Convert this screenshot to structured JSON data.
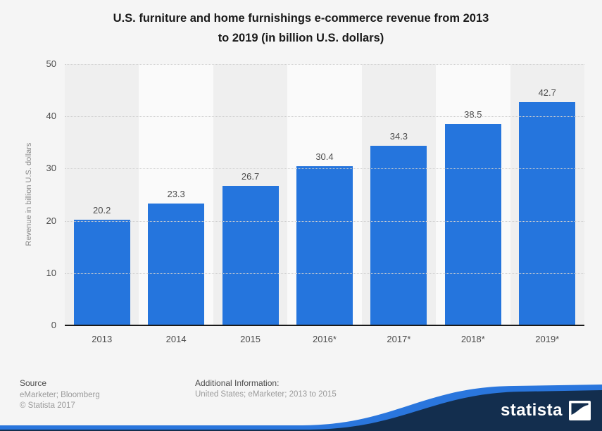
{
  "header": {
    "title_line1": "U.S. furniture and home furnishings e-commerce revenue from 2013",
    "title_line2": "to 2019 (in billion U.S. dollars)"
  },
  "chart_data": {
    "type": "bar",
    "title": "U.S. furniture and home furnishings e-commerce revenue from 2013 to 2019 (in billion U.S. dollars)",
    "categories": [
      "2013",
      "2014",
      "2015",
      "2016*",
      "2017*",
      "2018*",
      "2019*"
    ],
    "values": [
      20.2,
      23.3,
      26.7,
      30.4,
      34.3,
      38.5,
      42.7
    ],
    "xlabel": "",
    "ylabel": "Revenue in billion U.S. dollars",
    "ylim": [
      0,
      50
    ],
    "yticks": [
      "50",
      "40",
      "30",
      "20",
      "10",
      "0"
    ],
    "grid": "horizontal dotted",
    "legend": "none",
    "bar_color": "#2575dd"
  },
  "footer": {
    "source_heading": "Source",
    "source_line1": "eMarketer; Bloomberg",
    "source_line2": "© Statista 2017",
    "additional_heading": "Additional Information:",
    "additional_line": "United States; eMarketer; 2013 to 2015"
  },
  "branding": {
    "logo_text": "statista",
    "navy_color": "#132e4e",
    "blue_color": "#2a76dd"
  }
}
